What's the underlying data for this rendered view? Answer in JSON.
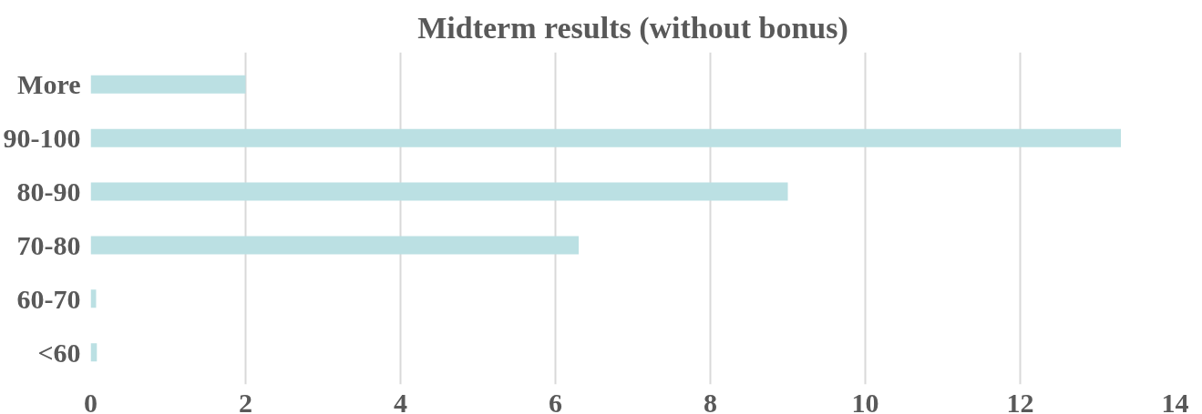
{
  "chart_data": {
    "type": "bar",
    "orientation": "horizontal",
    "title": "Midterm results (without bonus)",
    "categories": [
      "More",
      "90-100",
      "80-90",
      "70-80",
      "60-70",
      "<60"
    ],
    "values": [
      2.0,
      13.3,
      9.0,
      6.3,
      0.07,
      0.08
    ],
    "color": "#bbe0e3",
    "xlim": [
      0,
      14
    ],
    "xticks": [
      0,
      2,
      4,
      6,
      8,
      10,
      12,
      14
    ],
    "grid": "x"
  }
}
